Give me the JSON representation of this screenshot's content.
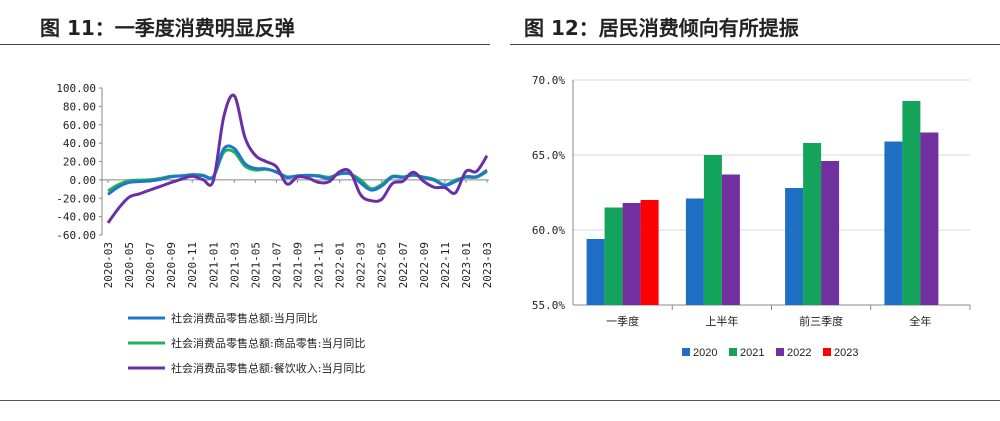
{
  "left_title": "图 11：一季度消费明显反弹",
  "right_title": "图 12：居民消费倾向有所提振",
  "colors": {
    "line_total": "#1f77c8",
    "line_goods": "#1fb35a",
    "line_catering": "#6a2fa6",
    "bar_2020": "#1f6fc4",
    "bar_2021": "#13a35a",
    "bar_2022": "#7030a0",
    "bar_2023": "#ff0000"
  },
  "chart_data": [
    {
      "type": "line",
      "title": "",
      "x": [
        "2020-03",
        "2020-04",
        "2020-05",
        "2020-06",
        "2020-07",
        "2020-08",
        "2020-09",
        "2020-10",
        "2020-11",
        "2020-12",
        "2021-01",
        "2021-02",
        "2021-03",
        "2021-04",
        "2021-05",
        "2021-06",
        "2021-07",
        "2021-08",
        "2021-09",
        "2021-10",
        "2021-11",
        "2021-12",
        "2022-01",
        "2022-02",
        "2022-03",
        "2022-04",
        "2022-05",
        "2022-06",
        "2022-07",
        "2022-08",
        "2022-09",
        "2022-10",
        "2022-11",
        "2022-12",
        "2023-01",
        "2023-02",
        "2023-03"
      ],
      "x_tick_labels": [
        "2020-03",
        "2020-05",
        "2020-07",
        "2020-09",
        "2020-11",
        "2021-01",
        "2021-03",
        "2021-05",
        "2021-07",
        "2021-09",
        "2021-11",
        "2022-01",
        "2022-03",
        "2022-05",
        "2022-07",
        "2022-09",
        "2022-11",
        "2023-01",
        "2023-03"
      ],
      "ylim": [
        -60,
        100
      ],
      "y_ticks": [
        "100.00",
        "80.00",
        "60.00",
        "40.00",
        "20.00",
        "0.00",
        "-20.00",
        "-40.00",
        "-60.00"
      ],
      "series": [
        {
          "name": "社会消费品零售总额:当月同比",
          "values": [
            -15.8,
            -7.5,
            -2.8,
            -1.8,
            -1.1,
            0.5,
            3.3,
            4.3,
            5.0,
            4.6,
            3.5,
            33.8,
            34.2,
            17.7,
            12.4,
            12.1,
            8.5,
            2.5,
            4.4,
            4.9,
            3.9,
            1.7,
            6.7,
            6.7,
            -3.5,
            -11.1,
            -6.7,
            3.1,
            2.7,
            5.4,
            2.5,
            -0.5,
            -5.9,
            -1.8,
            3.5,
            3.5,
            10.6
          ]
        },
        {
          "name": "社会消费品零售总额:商品零售:当月同比",
          "values": [
            -12.0,
            -5.1,
            -1.0,
            -0.2,
            0.2,
            1.6,
            3.9,
            4.4,
            5.9,
            5.1,
            3.6,
            30.0,
            30.0,
            15.1,
            10.8,
            11.5,
            8.8,
            3.4,
            4.3,
            5.0,
            4.6,
            2.9,
            6.5,
            6.5,
            -0.1,
            -9.7,
            -5.0,
            3.9,
            3.2,
            5.1,
            3.0,
            0.5,
            -5.6,
            -0.1,
            2.9,
            2.9,
            9.1
          ]
        },
        {
          "name": "社会消费品零售总额:餐饮收入:当月同比",
          "values": [
            -46.8,
            -31.1,
            -18.9,
            -15.2,
            -11.0,
            -7.0,
            -2.9,
            0.8,
            4.0,
            0.4,
            -1.0,
            68.9,
            91.6,
            46.4,
            26.6,
            20.0,
            14.3,
            -4.5,
            3.1,
            2.0,
            -2.7,
            -2.0,
            8.9,
            8.9,
            -16.4,
            -22.7,
            -21.1,
            -4.0,
            -1.5,
            8.4,
            -1.7,
            -8.1,
            -8.4,
            -14.1,
            9.2,
            9.2,
            26.3
          ]
        }
      ]
    },
    {
      "type": "bar",
      "title": "",
      "categories": [
        "一季度",
        "上半年",
        "前三季度",
        "全年"
      ],
      "ylim": [
        55,
        70
      ],
      "y_ticks": [
        "70.0%",
        "65.0%",
        "60.0%",
        "55.0%"
      ],
      "series": [
        {
          "name": "2020",
          "values": [
            59.4,
            62.1,
            62.8,
            65.9
          ]
        },
        {
          "name": "2021",
          "values": [
            61.5,
            65.0,
            65.8,
            68.6
          ]
        },
        {
          "name": "2022",
          "values": [
            61.8,
            63.7,
            64.6,
            66.5
          ]
        },
        {
          "name": "2023",
          "values": [
            62.0,
            null,
            null,
            null
          ]
        }
      ]
    }
  ]
}
